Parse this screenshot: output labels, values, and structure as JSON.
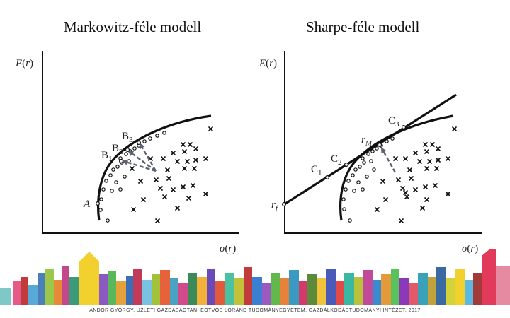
{
  "titles": {
    "left": "Markowitz-féle modell",
    "right": "Sharpe-féle modell"
  },
  "axes": {
    "left": {
      "y_label": "E(r)",
      "x_label": "σ(r)"
    },
    "right": {
      "y_label": "E(r)",
      "x_label": "σ(r)"
    }
  },
  "labels": {
    "left": {
      "A": "A",
      "B1": "B1",
      "B2": "B2",
      "B3": "B3"
    },
    "right": {
      "C1": "C1",
      "C2": "C2",
      "C3": "C3",
      "rM": "rM",
      "rf": "rf"
    }
  },
  "footer": "ANDOR GYÖRGY, ÜZLETI GAZDASÁGTAN, EÖTVÖS LORÁND TUDOMÁNYEGYETEM, GAZDÁLKODÁSTUDOMÁNYI INTÉZET, 2017",
  "colors": {
    "arrow": "#5b6270",
    "ink": "#111111"
  }
}
